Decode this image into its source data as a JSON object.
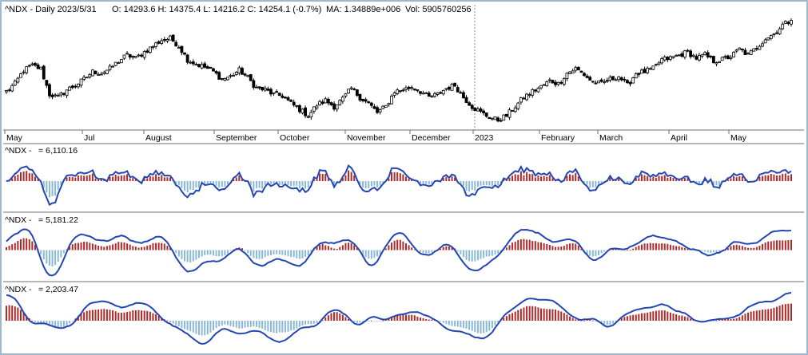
{
  "colors": {
    "frame": "#9fb7cf",
    "divider": "#6f6f6f",
    "candle": "#000000",
    "line": "#2346b4",
    "bar_positive": "#b12a2a",
    "bar_negative": "#8ab8d8",
    "text": "#000000"
  },
  "header": {
    "symbol": "^NDX - Daily 2023/5/31",
    "ohlc": "O: 14293.6 H: 14375.4 L: 14216.2 C: 14254.1 (-0.7%)",
    "ma": "MA: 1.34889e+006",
    "vol": "Vol: 5905760256"
  },
  "chart_data": [
    {
      "type": "candlestick",
      "title": "^NDX - Daily 2023/5/31",
      "x_tick_labels": [
        "May",
        "Jul",
        "August",
        "September",
        "October",
        "November",
        "December",
        "2023",
        "February",
        "March",
        "April",
        "May"
      ],
      "close_path": [
        11900,
        12150,
        12600,
        12750,
        12650,
        11800,
        11700,
        11950,
        12100,
        12300,
        12550,
        12500,
        12650,
        12900,
        13100,
        13000,
        13200,
        13400,
        13600,
        13650,
        13400,
        12950,
        12800,
        12700,
        12550,
        12300,
        12400,
        12600,
        12350,
        12000,
        11950,
        11800,
        11750,
        11500,
        11300,
        11100,
        11450,
        11600,
        11400,
        11650,
        12000,
        11700,
        11500,
        11200,
        11400,
        11900,
        11950,
        12050,
        11900,
        11700,
        11800,
        12000,
        12100,
        11700,
        11400,
        11200,
        11050,
        10950,
        11100,
        11400,
        11700,
        11900,
        12050,
        12250,
        12150,
        12500,
        12650,
        12450,
        12200,
        12150,
        12300,
        12400,
        12100,
        12500,
        12550,
        12650,
        12950,
        13000,
        13100,
        13200,
        13000,
        13100,
        12900,
        12950,
        13050,
        13300,
        13100,
        13350,
        13650,
        13800,
        14100,
        14250
      ],
      "price_range": [
        10700,
        14500
      ]
    },
    {
      "type": "line+bar",
      "panel": 1,
      "label": "^NDX -",
      "value": "= 6,110.16"
    },
    {
      "type": "line+bar",
      "panel": 2,
      "label": "^NDX -",
      "value": "= 5,181.22"
    },
    {
      "type": "line+bar",
      "panel": 3,
      "label": "^NDX -",
      "value": "= 2,203.47"
    }
  ],
  "oscillators": [
    {
      "smooth": 1,
      "seed": 3,
      "amp": 0.8
    },
    {
      "smooth": 4,
      "seed": 7,
      "amp": 0.85
    },
    {
      "smooth": 9,
      "seed": 11,
      "amp": 0.9
    }
  ]
}
